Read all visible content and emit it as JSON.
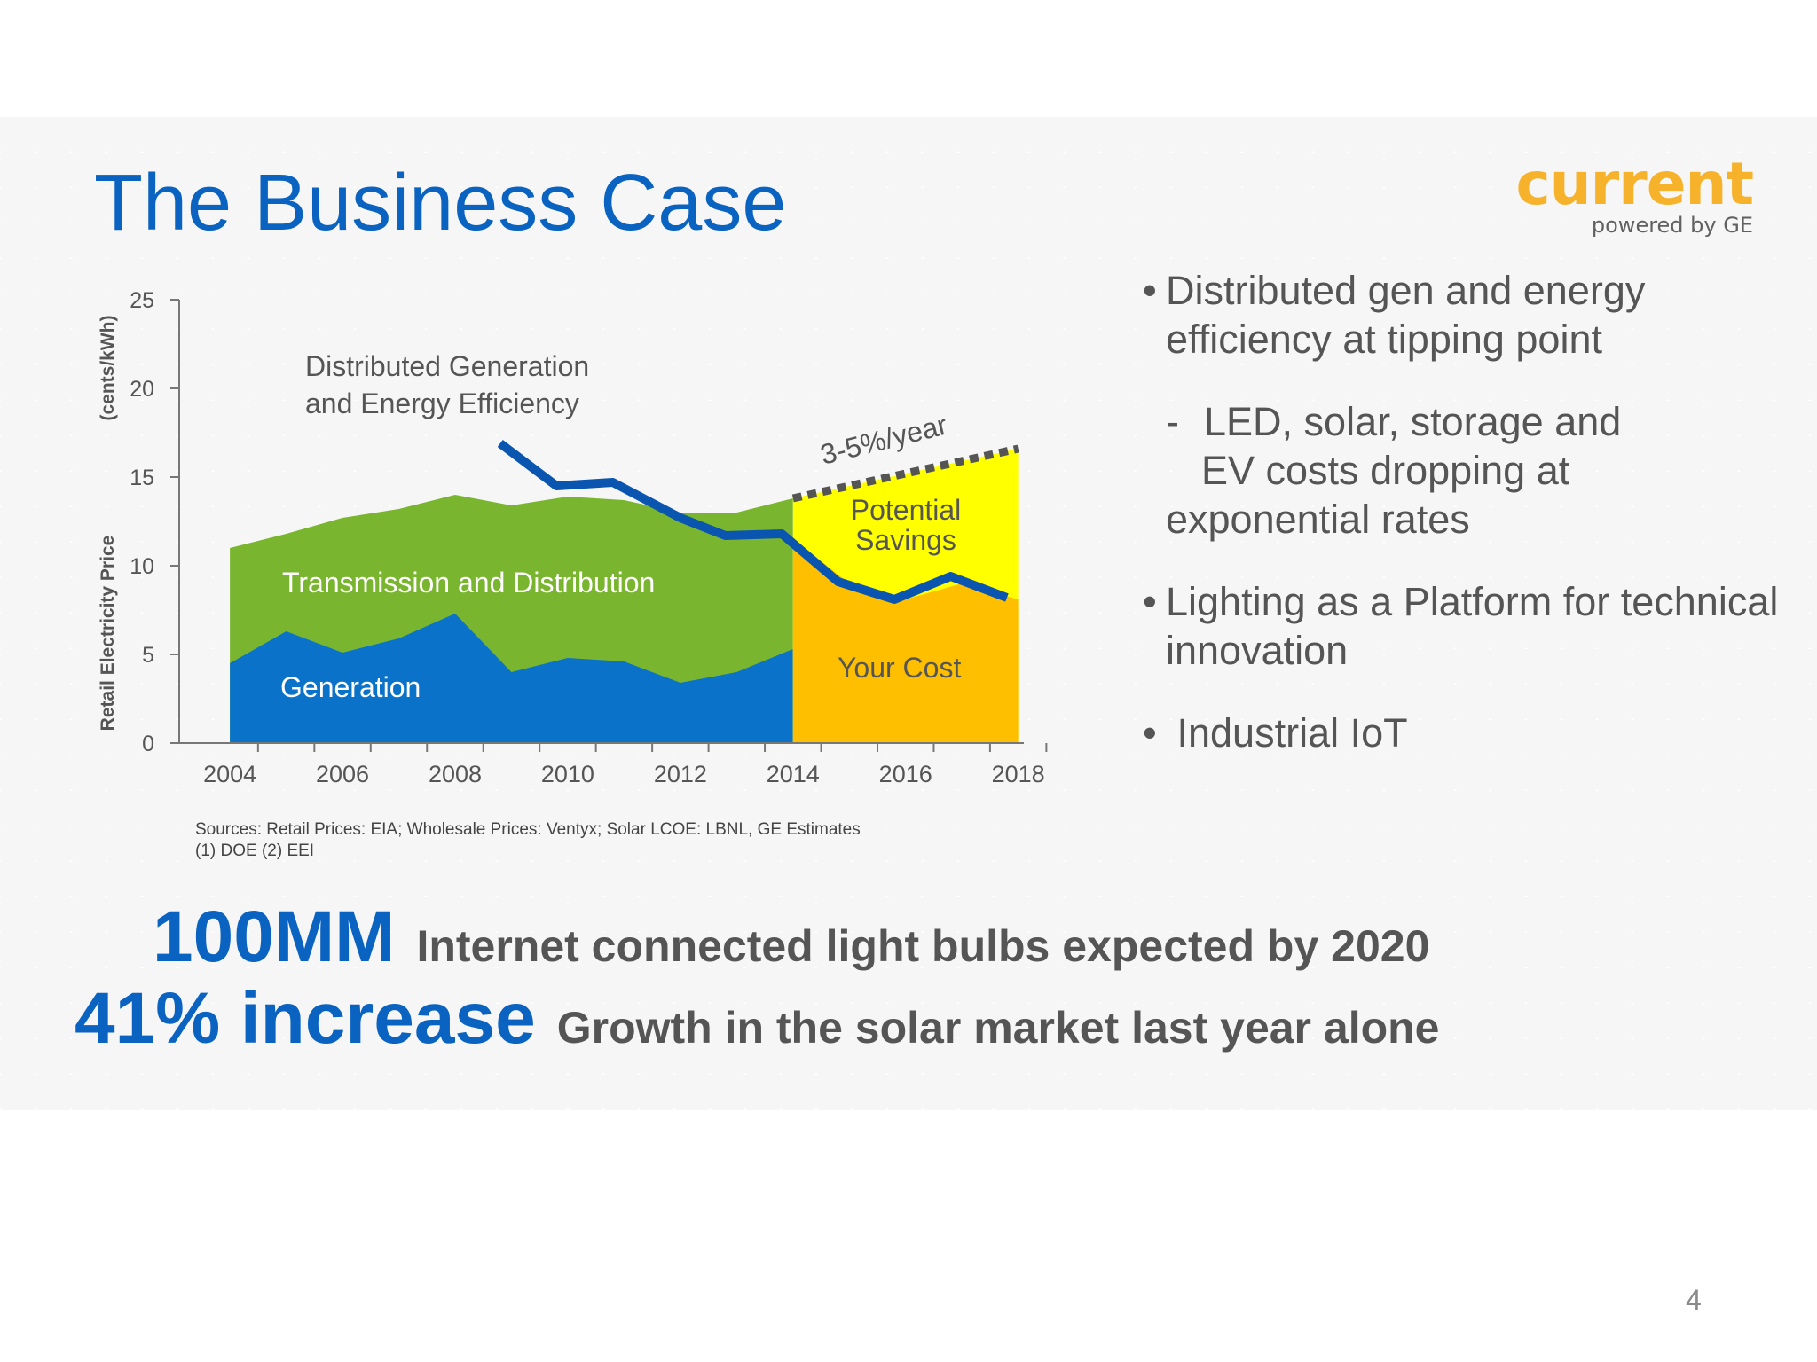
{
  "slide": {
    "title": "The Business Case",
    "page_number": "4"
  },
  "logo": {
    "word": "current",
    "tagline": "powered by GE"
  },
  "bullets": [
    {
      "marker": "•",
      "text": "Distributed gen and energy efficiency at tipping point"
    },
    {
      "marker": "-",
      "text_line1": "LED, solar, storage and",
      "text_line2": "EV costs dropping at",
      "text_line3": "exponential rates"
    },
    {
      "marker": "•",
      "text": "Lighting as a  Platform for technical innovation"
    },
    {
      "marker": "•",
      "text": " Industrial IoT"
    }
  ],
  "sources": {
    "line1": "Sources: Retail Prices:  EIA; Wholesale Prices: Ventyx; Solar LCOE:  LBNL, GE Estimates",
    "line2": "(1) DOE (2) EEI"
  },
  "stats": [
    {
      "big": "100MM",
      "text": "Internet connected light bulbs expected by 2020"
    },
    {
      "big": "41% increase",
      "text": "Growth in the solar market last year alone"
    }
  ],
  "chart_data": {
    "type": "area",
    "ylabel_line1": "Retail Electricity Price",
    "ylabel_line2": "(cents/kWh)",
    "xlabel": "",
    "ylim": [
      0,
      25
    ],
    "xlim": [
      2003.1,
      2018.1
    ],
    "yticks": [
      0,
      5,
      10,
      15,
      20,
      25
    ],
    "xticks": [
      2004,
      2006,
      2008,
      2010,
      2012,
      2014,
      2016,
      2018
    ],
    "grid": false,
    "colors": {
      "generation": "#0a72c8",
      "transmission": "#79b52e",
      "your_cost": "#fdbf00",
      "savings": "#ffff00",
      "dg_line": "#0a55b0",
      "trend": "#555555"
    },
    "series": [
      {
        "name": "Generation",
        "x": [
          2004,
          2005,
          2006,
          2007,
          2008,
          2009,
          2010,
          2011,
          2012,
          2013,
          2014
        ],
        "values": [
          4.5,
          6.3,
          5.1,
          5.9,
          7.3,
          4.0,
          4.8,
          4.6,
          3.4,
          4.0,
          5.3
        ]
      },
      {
        "name": "Transmission and Distribution",
        "x": [
          2004,
          2005,
          2006,
          2007,
          2008,
          2009,
          2010,
          2011,
          2012,
          2013,
          2014
        ],
        "values": [
          11.0,
          11.8,
          12.7,
          13.2,
          14.0,
          13.4,
          13.9,
          13.7,
          13.0,
          13.0,
          13.8
        ]
      },
      {
        "name": "Your Cost",
        "x": [
          2014,
          2015,
          2016,
          2017,
          2018
        ],
        "values": [
          11.5,
          9.0,
          8.1,
          9.0,
          8.1
        ]
      },
      {
        "name": "Potential Savings",
        "x": [
          2014,
          2018
        ],
        "values": [
          13.8,
          16.6
        ]
      },
      {
        "name": "Distributed Generation and Energy Efficiency",
        "x": [
          2008.8,
          2009.8,
          2010.8,
          2012.0,
          2012.8,
          2013.8,
          2014.8,
          2015.8,
          2016.8,
          2017.8
        ],
        "values": [
          16.9,
          14.5,
          14.7,
          12.7,
          11.7,
          11.8,
          9.1,
          8.1,
          9.4,
          8.2
        ]
      }
    ],
    "annotations": {
      "dg_label_line1": "Distributed Generation",
      "dg_label_line2": "and Energy Efficiency",
      "td_label": "Transmission and Distribution",
      "gen_label": "Generation",
      "cost_label": "Your Cost",
      "savings_line1": "Potential",
      "savings_line2": "Savings",
      "trend_label": "3-5%/year"
    }
  }
}
